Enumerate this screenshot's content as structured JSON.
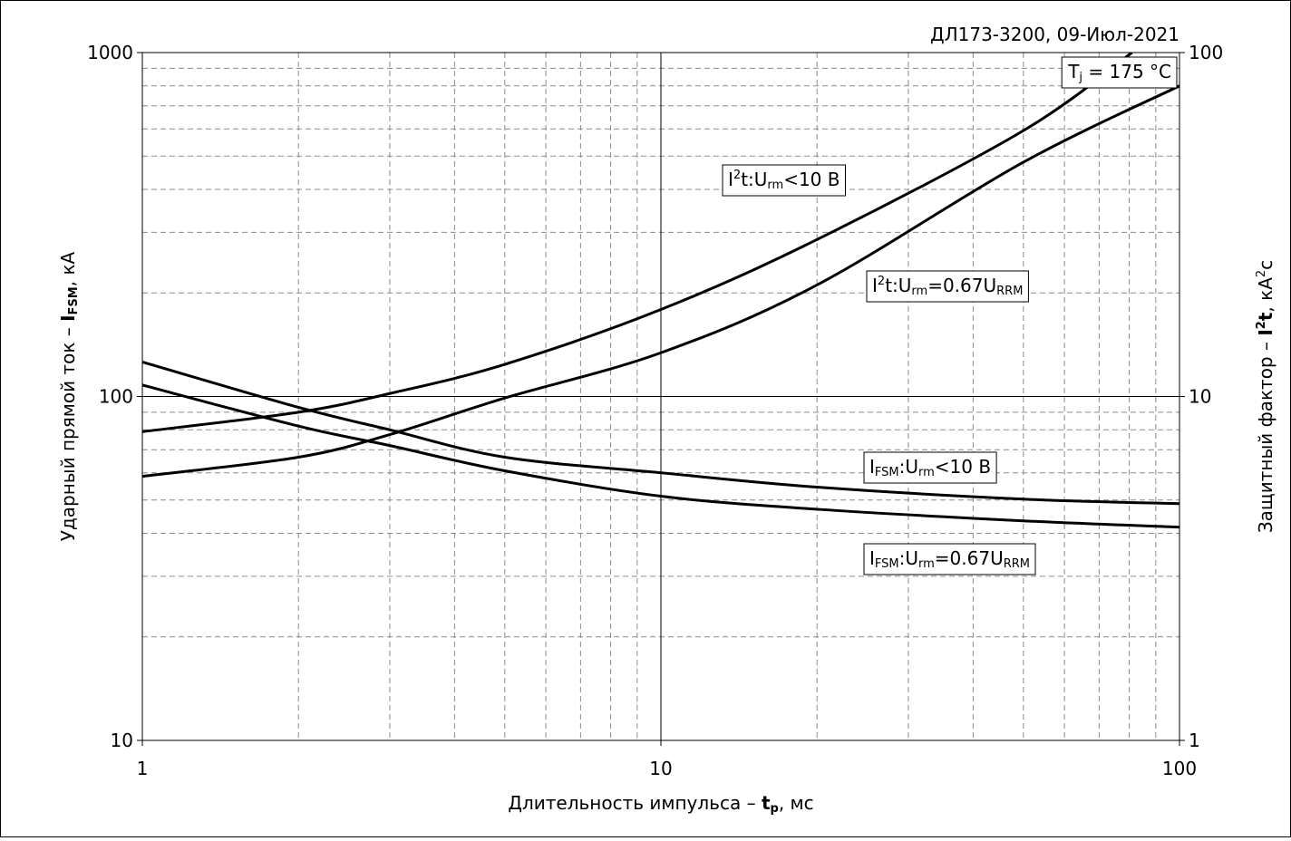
{
  "chart_data": {
    "type": "line",
    "title": "ДЛ173-3200, 09-Июл-2021",
    "condition_parts": [
      {
        "text": "T"
      },
      {
        "text": "j",
        "sub": true
      },
      {
        "text": " = 175 °C"
      }
    ],
    "x_label_parts": [
      {
        "text": "Длительность импульса – "
      },
      {
        "text": "t",
        "bold": true
      },
      {
        "text": "p",
        "sub": true,
        "bold": true
      },
      {
        "text": ", мс"
      }
    ],
    "y_label_parts": [
      {
        "text": "Ударный прямой ток – "
      },
      {
        "text": "I",
        "bold": true
      },
      {
        "text": "FSM",
        "sub": true,
        "bold": true
      },
      {
        "text": ", кА"
      }
    ],
    "y2_label_parts": [
      {
        "text": "Защитный фактор – "
      },
      {
        "text": "I",
        "bold": true
      },
      {
        "text": "2",
        "sup": true,
        "bold": true
      },
      {
        "text": "t",
        "bold": true
      },
      {
        "text": ", кА"
      },
      {
        "text": "2",
        "sup": true
      },
      {
        "text": "с"
      }
    ],
    "xlog": true,
    "ylog": true,
    "y2log": true,
    "xlim": [
      1,
      100
    ],
    "ylim": [
      10,
      1000
    ],
    "y2lim": [
      1,
      100
    ],
    "xticks": [
      1,
      10,
      100
    ],
    "yticks": [
      10,
      100,
      1000
    ],
    "y2ticks": [
      1,
      10,
      100
    ],
    "minor_xticks": [
      2,
      3,
      4,
      5,
      6,
      7,
      8,
      9,
      20,
      30,
      40,
      50,
      60,
      70,
      80,
      90
    ],
    "minor_yticks": [
      20,
      30,
      40,
      50,
      60,
      70,
      80,
      90,
      200,
      300,
      400,
      500,
      600,
      700,
      800,
      900
    ],
    "grid": true,
    "series": [
      {
        "name_parts": [
          {
            "text": "I"
          },
          {
            "text": "FSM",
            "sub": true
          },
          {
            "text": ":U"
          },
          {
            "text": "rm",
            "sub": true
          },
          {
            "text": "<10 B"
          }
        ],
        "color": "#000000",
        "axis": "y",
        "x": [
          1,
          2,
          3,
          5,
          10,
          20,
          50,
          100
        ],
        "values": [
          126,
          93,
          80,
          66.6,
          60,
          54.5,
          50.3,
          48.8
        ]
      },
      {
        "name_parts": [
          {
            "text": "I"
          },
          {
            "text": "FSM",
            "sub": true
          },
          {
            "text": ":U"
          },
          {
            "text": "rm",
            "sub": true
          },
          {
            "text": "=0.67U"
          },
          {
            "text": "RRM",
            "sub": true
          }
        ],
        "color": "#000000",
        "axis": "y",
        "x": [
          1,
          2,
          3,
          5,
          10,
          20,
          50,
          100
        ],
        "values": [
          108,
          82,
          72,
          60.8,
          51.3,
          47,
          43.5,
          41.7
        ]
      },
      {
        "name_parts": [
          {
            "text": "I"
          },
          {
            "text": "2",
            "sup": true
          },
          {
            "text": "t:U"
          },
          {
            "text": "rm",
            "sub": true
          },
          {
            "text": "<10 B"
          }
        ],
        "color": "#000000",
        "axis": "y2",
        "x": [
          1,
          2,
          3,
          5,
          10,
          20,
          50,
          81
        ],
        "values": [
          7.9,
          9.0,
          10.2,
          12.4,
          17.9,
          28.6,
          59.3,
          100
        ]
      },
      {
        "name_parts": [
          {
            "text": "I"
          },
          {
            "text": "2",
            "sup": true
          },
          {
            "text": "t:U"
          },
          {
            "text": "rm",
            "sub": true
          },
          {
            "text": "=0.67U"
          },
          {
            "text": "RRM",
            "sub": true
          }
        ],
        "color": "#000000",
        "axis": "y2",
        "x": [
          1,
          2,
          3,
          5,
          10,
          20,
          50,
          100
        ],
        "values": [
          5.86,
          6.66,
          7.75,
          9.9,
          13.4,
          21.1,
          48,
          80
        ]
      }
    ]
  }
}
